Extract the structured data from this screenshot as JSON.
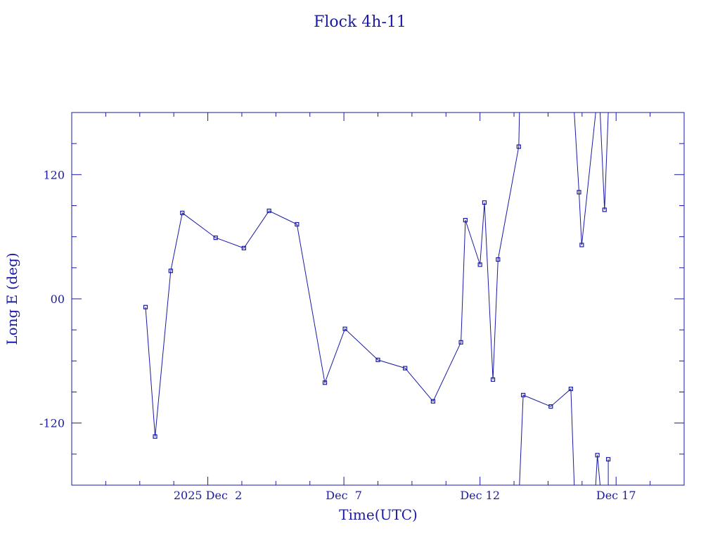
{
  "chart_data": {
    "type": "line",
    "title": "Flock 4h-11",
    "xlabel": "Time(UTC)",
    "ylabel": "Long E (deg)",
    "x_unit": "days",
    "xlim": [
      2025.0,
      2043.0
    ],
    "ylim": [
      -180,
      180
    ],
    "grid": false,
    "x_ticks": [
      {
        "value": 2029.0,
        "label": "2025 Dec  2"
      },
      {
        "value": 2033.0,
        "label": "Dec  7"
      },
      {
        "value": 2037.0,
        "label": "Dec 12"
      },
      {
        "value": 2041.0,
        "label": "Dec 17"
      }
    ],
    "y_ticks": [
      {
        "value": 120,
        "label": "120"
      },
      {
        "value": 0,
        "label": "00"
      },
      {
        "value": -120,
        "label": "-120"
      }
    ],
    "color": "#1a1aa6",
    "series": [
      {
        "segments": [
          [
            {
              "x": 2027.17,
              "y": -8
            },
            {
              "x": 2027.45,
              "y": -133
            },
            {
              "x": 2027.91,
              "y": 27
            },
            {
              "x": 2028.25,
              "y": 83
            },
            {
              "x": 2029.23,
              "y": 59
            },
            {
              "x": 2030.06,
              "y": 49
            },
            {
              "x": 2030.8,
              "y": 85
            },
            {
              "x": 2031.62,
              "y": 72
            },
            {
              "x": 2032.44,
              "y": -81
            },
            {
              "x": 2033.03,
              "y": -29
            },
            {
              "x": 2034.0,
              "y": -59
            },
            {
              "x": 2034.8,
              "y": -67
            },
            {
              "x": 2035.62,
              "y": -99
            },
            {
              "x": 2036.44,
              "y": -42
            },
            {
              "x": 2036.57,
              "y": 76
            },
            {
              "x": 2037.0,
              "y": 33
            },
            {
              "x": 2037.13,
              "y": 93
            },
            {
              "x": 2037.38,
              "y": -78
            },
            {
              "x": 2037.53,
              "y": 38
            },
            {
              "x": 2038.14,
              "y": 147
            },
            {
              "x": 2038.16,
              "y": 180
            }
          ],
          [
            {
              "x": 2038.16,
              "y": -180
            },
            {
              "x": 2038.27,
              "y": -93
            },
            {
              "x": 2039.08,
              "y": -104
            },
            {
              "x": 2039.67,
              "y": -87
            },
            {
              "x": 2039.77,
              "y": -180
            }
          ],
          [
            {
              "x": 2039.77,
              "y": 180
            },
            {
              "x": 2039.91,
              "y": 103
            },
            {
              "x": 2039.99,
              "y": 52
            },
            {
              "x": 2040.4,
              "y": 180
            }
          ],
          [
            {
              "x": 2040.4,
              "y": -180
            },
            {
              "x": 2040.45,
              "y": -151
            },
            {
              "x": 2040.53,
              "y": -180
            }
          ],
          [
            {
              "x": 2040.53,
              "y": 180
            },
            {
              "x": 2040.66,
              "y": 86
            },
            {
              "x": 2040.77,
              "y": 180
            }
          ],
          [
            {
              "x": 2040.77,
              "y": -155
            },
            {
              "x": 2040.77,
              "y": -180
            }
          ]
        ],
        "points": [
          {
            "x": 2027.17,
            "y": -8
          },
          {
            "x": 2027.45,
            "y": -133
          },
          {
            "x": 2027.91,
            "y": 27
          },
          {
            "x": 2028.25,
            "y": 83
          },
          {
            "x": 2029.23,
            "y": 59
          },
          {
            "x": 2030.06,
            "y": 49
          },
          {
            "x": 2030.8,
            "y": 85
          },
          {
            "x": 2031.62,
            "y": 72
          },
          {
            "x": 2032.44,
            "y": -81
          },
          {
            "x": 2033.03,
            "y": -29
          },
          {
            "x": 2034.0,
            "y": -59
          },
          {
            "x": 2034.8,
            "y": -67
          },
          {
            "x": 2035.62,
            "y": -99
          },
          {
            "x": 2036.44,
            "y": -42
          },
          {
            "x": 2036.57,
            "y": 76
          },
          {
            "x": 2037.0,
            "y": 33
          },
          {
            "x": 2037.13,
            "y": 93
          },
          {
            "x": 2037.38,
            "y": -78
          },
          {
            "x": 2037.53,
            "y": 38
          },
          {
            "x": 2038.14,
            "y": 147
          },
          {
            "x": 2038.27,
            "y": -93
          },
          {
            "x": 2039.08,
            "y": -104
          },
          {
            "x": 2039.67,
            "y": -87
          },
          {
            "x": 2039.91,
            "y": 103
          },
          {
            "x": 2039.99,
            "y": 52
          },
          {
            "x": 2040.45,
            "y": -151
          },
          {
            "x": 2040.66,
            "y": 86
          },
          {
            "x": 2040.77,
            "y": -155
          }
        ]
      }
    ]
  }
}
